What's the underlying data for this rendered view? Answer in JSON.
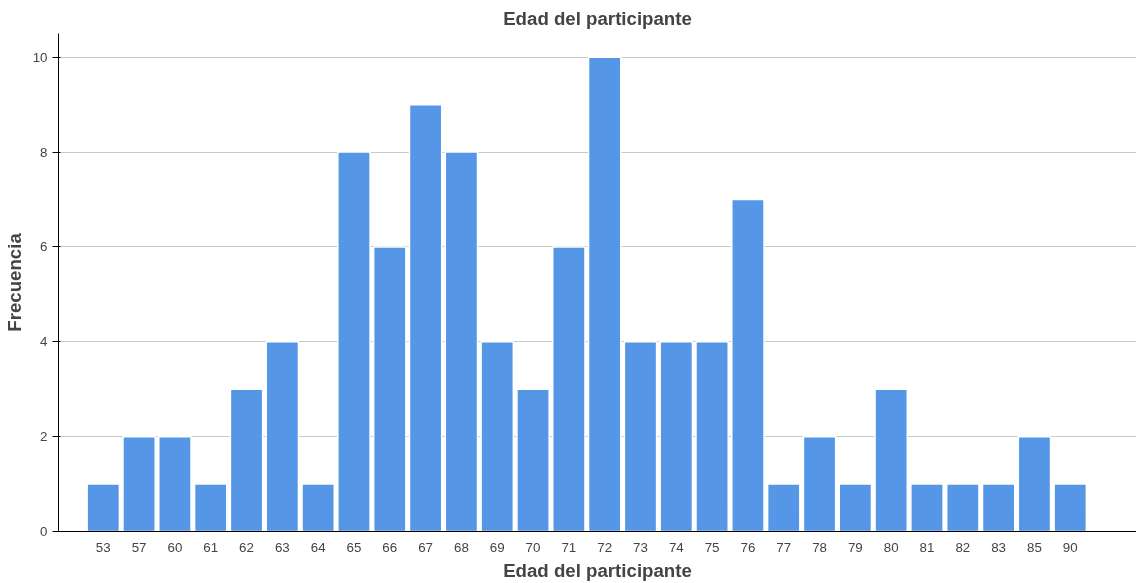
{
  "chart_data": {
    "type": "bar",
    "title": "Edad del participante",
    "xlabel": "Edad del participante",
    "ylabel": "Frecuencia",
    "categories": [
      "53",
      "57",
      "60",
      "61",
      "62",
      "63",
      "64",
      "65",
      "66",
      "67",
      "68",
      "69",
      "70",
      "71",
      "72",
      "73",
      "74",
      "75",
      "76",
      "77",
      "78",
      "79",
      "80",
      "81",
      "82",
      "83",
      "85",
      "90"
    ],
    "values": [
      1,
      2,
      2,
      1,
      3,
      4,
      1,
      8,
      6,
      9,
      8,
      4,
      3,
      6,
      10,
      4,
      4,
      4,
      7,
      1,
      2,
      1,
      3,
      1,
      1,
      1,
      2,
      1
    ],
    "color": "#5596e6",
    "ylim": [
      0,
      10.5
    ],
    "yticks": [
      0,
      2,
      4,
      6,
      8,
      10
    ],
    "grid": "y"
  }
}
